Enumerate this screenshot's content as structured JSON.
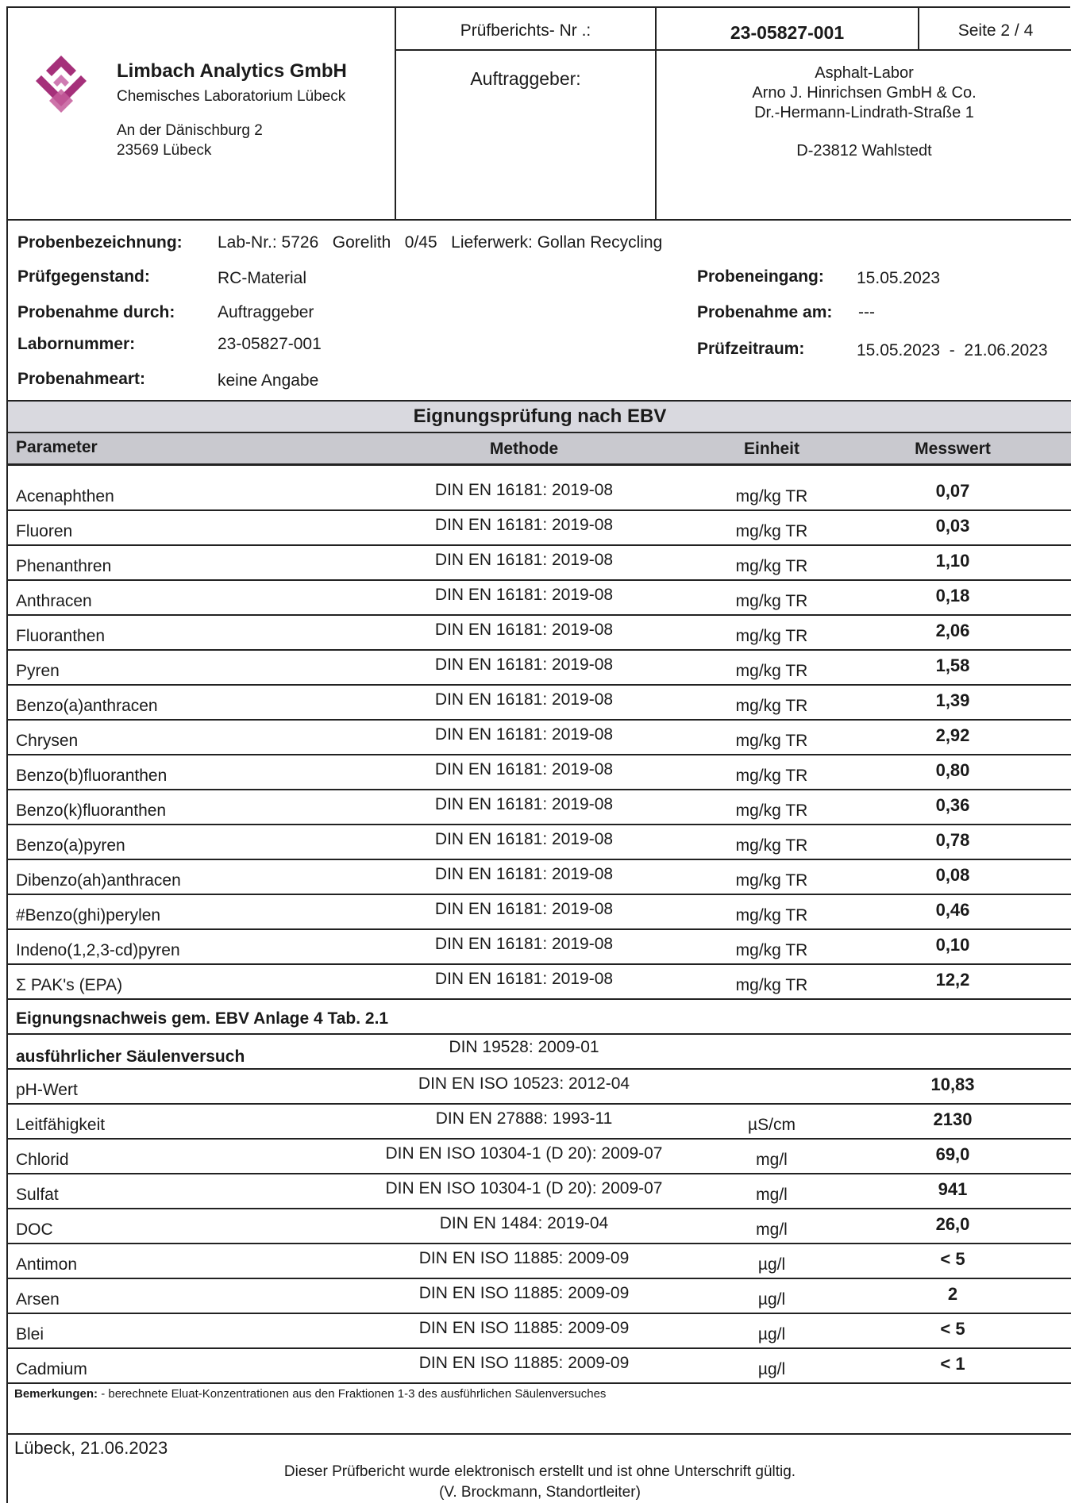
{
  "header": {
    "company_name": "Limbach Analytics GmbH",
    "company_sub": "Chemisches Laboratorium Lübeck",
    "address_line1": "An der Dänischburg 2",
    "address_line2": "23569 Lübeck",
    "report_no_label": "Prüfberichts- Nr .:",
    "report_no": "23-05827-001",
    "page": "Seite 2 / 4",
    "client_label": "Auftraggeber:",
    "client_lines": [
      "Asphalt-Labor",
      "Arno J. Hinrichsen GmbH & Co.",
      "Dr.-Hermann-Lindrath-Straße 1",
      "D-23812 Wahlstedt"
    ]
  },
  "meta": {
    "probenbezeichnung_label": "Probenbezeichnung:",
    "probenbezeichnung": "Lab-Nr.: 5726   Gorelith   0/45   Lieferwerk: Gollan Recycling",
    "pruefgegenstand_label": "Prüfgegenstand:",
    "pruefgegenstand": "RC-Material",
    "probenahme_durch_label": "Probenahme durch:",
    "probenahme_durch": "Auftraggeber",
    "labornummer_label": "Labornummer:",
    "labornummer": "23-05827-001",
    "probenahmeart_label": "Probenahmeart:",
    "probenahmeart": "keine Angabe",
    "probeneingang_label": "Probeneingang:",
    "probeneingang": "15.05.2023",
    "probenahme_am_label": "Probenahme am:",
    "probenahme_am": "---",
    "pruefzeitraum_label": "Prüfzeitraum:",
    "pruefzeitraum": "15.05.2023  -  21.06.2023"
  },
  "table": {
    "title": "Eignungsprüfung nach EBV",
    "headers": {
      "param": "Parameter",
      "method": "Methode",
      "unit": "Einheit",
      "value": "Messwert"
    },
    "pak_rows": [
      {
        "param": "Acenaphthen",
        "method": "DIN EN 16181: 2019-08",
        "unit": "mg/kg TR",
        "value": "0,07"
      },
      {
        "param": "Fluoren",
        "method": "DIN EN 16181: 2019-08",
        "unit": "mg/kg TR",
        "value": "0,03"
      },
      {
        "param": "Phenanthren",
        "method": "DIN EN 16181: 2019-08",
        "unit": "mg/kg TR",
        "value": "1,10"
      },
      {
        "param": "Anthracen",
        "method": "DIN EN 16181: 2019-08",
        "unit": "mg/kg TR",
        "value": "0,18"
      },
      {
        "param": "Fluoranthen",
        "method": "DIN EN 16181: 2019-08",
        "unit": "mg/kg TR",
        "value": "2,06"
      },
      {
        "param": "Pyren",
        "method": "DIN EN 16181: 2019-08",
        "unit": "mg/kg TR",
        "value": "1,58"
      },
      {
        "param": "Benzo(a)anthracen",
        "method": "DIN EN 16181: 2019-08",
        "unit": "mg/kg TR",
        "value": "1,39"
      },
      {
        "param": "Chrysen",
        "method": "DIN EN 16181: 2019-08",
        "unit": "mg/kg TR",
        "value": "2,92"
      },
      {
        "param": "Benzo(b)fluoranthen",
        "method": "DIN EN 16181: 2019-08",
        "unit": "mg/kg TR",
        "value": "0,80"
      },
      {
        "param": "Benzo(k)fluoranthen",
        "method": "DIN EN 16181: 2019-08",
        "unit": "mg/kg TR",
        "value": "0,36"
      },
      {
        "param": "Benzo(a)pyren",
        "method": "DIN EN 16181: 2019-08",
        "unit": "mg/kg TR",
        "value": "0,78"
      },
      {
        "param": "Dibenzo(ah)anthracen",
        "method": "DIN EN 16181: 2019-08",
        "unit": "mg/kg TR",
        "value": "0,08"
      },
      {
        "param": "#Benzo(ghi)perylen",
        "method": "DIN EN 16181: 2019-08",
        "unit": "mg/kg TR",
        "value": "0,46"
      },
      {
        "param": "Indeno(1,2,3-cd)pyren",
        "method": "DIN EN 16181: 2019-08",
        "unit": "mg/kg TR",
        "value": "0,10"
      },
      {
        "param": "Σ PAK's (EPA)",
        "method": "DIN EN 16181: 2019-08",
        "unit": "mg/kg TR",
        "value": "12,2"
      }
    ],
    "section2_title": "Eignungsnachweis gem. EBV Anlage 4 Tab. 2.1",
    "column_test": {
      "param": "ausführlicher Säulenversuch",
      "method": "DIN 19528: 2009-01"
    },
    "eluate_rows": [
      {
        "param": "pH-Wert",
        "method": "DIN EN ISO 10523: 2012-04",
        "unit": "",
        "value": "10,83"
      },
      {
        "param": "Leitfähigkeit",
        "method": "DIN EN 27888: 1993-11",
        "unit": "µS/cm",
        "value": "2130"
      },
      {
        "param": "Chlorid",
        "method": "DIN EN ISO 10304-1 (D 20): 2009-07",
        "unit": "mg/l",
        "value": "69,0"
      },
      {
        "param": "Sulfat",
        "method": "DIN EN ISO 10304-1 (D 20): 2009-07",
        "unit": "mg/l",
        "value": "941"
      },
      {
        "param": "DOC",
        "method": "DIN EN 1484: 2019-04",
        "unit": "mg/l",
        "value": "26,0"
      },
      {
        "param": "Antimon",
        "method": "DIN EN ISO 11885: 2009-09",
        "unit": "µg/l",
        "value": "< 5"
      },
      {
        "param": "Arsen",
        "method": "DIN EN ISO 11885: 2009-09",
        "unit": "µg/l",
        "value": "2"
      },
      {
        "param": "Blei",
        "method": "DIN EN ISO 11885: 2009-09",
        "unit": "µg/l",
        "value": "< 5"
      },
      {
        "param": "Cadmium",
        "method": "DIN EN ISO 11885: 2009-09",
        "unit": "µg/l",
        "value": "< 1"
      }
    ]
  },
  "remarks": {
    "label": "Bemerkungen:",
    "text": " - berechnete Eluat-Konzentrationen aus den Fraktionen 1-3 des ausführlichen Säulenversuches"
  },
  "footer": {
    "place_date": "Lübeck, 21.06.2023",
    "note": "Dieser Prüfbericht wurde elektronisch erstellt und ist ohne Unterschrift gültig.",
    "signatory": "(V. Brockmann, Standortleiter)"
  },
  "colors": {
    "logo": "#a5307a",
    "section_bg": "#d9d9df",
    "header_bg": "#c9c9cf"
  }
}
